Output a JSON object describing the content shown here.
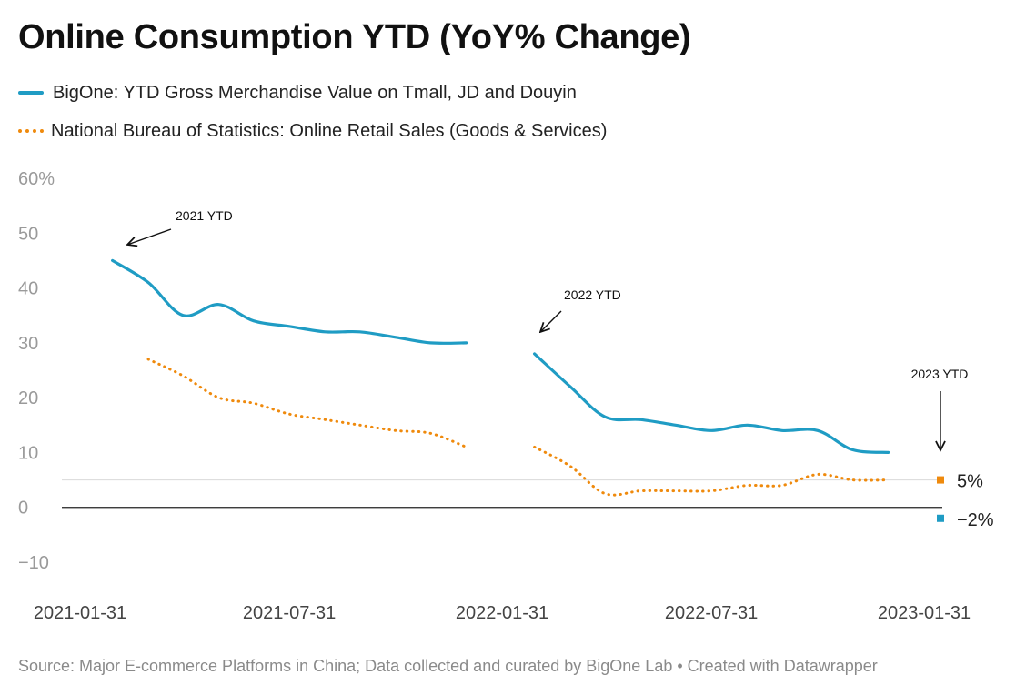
{
  "title": "Online Consumption YTD (YoY% Change)",
  "legend": [
    {
      "name": "BigOne: YTD Gross Merchandise Value on Tmall, JD and Douyin",
      "color": "#1f9cc4",
      "style": "solid"
    },
    {
      "name": "National Bureau of Statistics: Online Retail Sales (Goods & Services)",
      "color": "#ef8a0d",
      "style": "dotted"
    }
  ],
  "source": "Source: Major E-commerce Platforms in China; Data collected and curated by BigOne Lab • Created with Datawrapper",
  "chart_data": {
    "type": "line",
    "title": "Online Consumption YTD (YoY% Change)",
    "ylim": [
      -10,
      60
    ],
    "yticks": [
      {
        "value": 60,
        "label": "60%"
      },
      {
        "value": 50,
        "label": "50"
      },
      {
        "value": 40,
        "label": "40"
      },
      {
        "value": 30,
        "label": "30"
      },
      {
        "value": 20,
        "label": "20"
      },
      {
        "value": 10,
        "label": "10"
      },
      {
        "value": 0,
        "label": "0"
      },
      {
        "value": -10,
        "label": "−10"
      }
    ],
    "xlim": [
      "2021-01-31",
      "2023-01-31"
    ],
    "xticks": [
      "2021-01-31",
      "2021-07-31",
      "2022-01-31",
      "2022-07-31",
      "2023-01-31"
    ],
    "reference_line": 5,
    "series": [
      {
        "name": "BigOne: YTD Gross Merchandise Value on Tmall, JD and Douyin",
        "color": "#1f9cc4",
        "style": "solid",
        "segments": [
          [
            {
              "x": "2021-02-28",
              "y": 45
            },
            {
              "x": "2021-03-31",
              "y": 41
            },
            {
              "x": "2021-04-30",
              "y": 35
            },
            {
              "x": "2021-05-31",
              "y": 37
            },
            {
              "x": "2021-06-30",
              "y": 34
            },
            {
              "x": "2021-07-31",
              "y": 33
            },
            {
              "x": "2021-08-31",
              "y": 32
            },
            {
              "x": "2021-09-30",
              "y": 32
            },
            {
              "x": "2021-10-31",
              "y": 31
            },
            {
              "x": "2021-11-30",
              "y": 30
            },
            {
              "x": "2021-12-31",
              "y": 30
            }
          ],
          [
            {
              "x": "2022-02-28",
              "y": 28
            },
            {
              "x": "2022-03-31",
              "y": 22
            },
            {
              "x": "2022-04-30",
              "y": 16.5
            },
            {
              "x": "2022-05-31",
              "y": 16
            },
            {
              "x": "2022-06-30",
              "y": 15
            },
            {
              "x": "2022-07-31",
              "y": 14
            },
            {
              "x": "2022-08-31",
              "y": 15
            },
            {
              "x": "2022-09-30",
              "y": 14
            },
            {
              "x": "2022-10-31",
              "y": 14
            },
            {
              "x": "2022-11-30",
              "y": 10.5
            },
            {
              "x": "2022-12-31",
              "y": 10
            }
          ]
        ]
      },
      {
        "name": "National Bureau of Statistics: Online Retail Sales (Goods & Services)",
        "color": "#ef8a0d",
        "style": "dotted",
        "segments": [
          [
            {
              "x": "2021-03-31",
              "y": 27
            },
            {
              "x": "2021-04-30",
              "y": 24
            },
            {
              "x": "2021-05-31",
              "y": 20
            },
            {
              "x": "2021-06-30",
              "y": 19
            },
            {
              "x": "2021-07-31",
              "y": 17
            },
            {
              "x": "2021-08-31",
              "y": 16
            },
            {
              "x": "2021-09-30",
              "y": 15
            },
            {
              "x": "2021-10-31",
              "y": 14
            },
            {
              "x": "2021-11-30",
              "y": 13.5
            },
            {
              "x": "2021-12-31",
              "y": 11
            }
          ],
          [
            {
              "x": "2022-02-28",
              "y": 11
            },
            {
              "x": "2022-03-31",
              "y": 7.5
            },
            {
              "x": "2022-04-30",
              "y": 2.5
            },
            {
              "x": "2022-05-31",
              "y": 3
            },
            {
              "x": "2022-06-30",
              "y": 3
            },
            {
              "x": "2022-07-31",
              "y": 3
            },
            {
              "x": "2022-08-31",
              "y": 4
            },
            {
              "x": "2022-09-30",
              "y": 4
            },
            {
              "x": "2022-10-31",
              "y": 6
            },
            {
              "x": "2022-11-30",
              "y": 5
            },
            {
              "x": "2022-12-31",
              "y": 5
            }
          ]
        ]
      }
    ],
    "end_markers": [
      {
        "x": "2023-01-31",
        "y": 5,
        "label": "5%",
        "color": "#ef8a0d"
      },
      {
        "x": "2023-01-31",
        "y": -2,
        "label": "−2%",
        "color": "#1f9cc4"
      }
    ],
    "annotations": [
      {
        "text": "2021 YTD",
        "x": "2021-02-28",
        "y": 49
      },
      {
        "text": "2022 YTD",
        "x": "2022-02-28",
        "y": 32
      },
      {
        "text": "2023 YTD",
        "x": "2023-01-31",
        "y": 10
      }
    ]
  }
}
